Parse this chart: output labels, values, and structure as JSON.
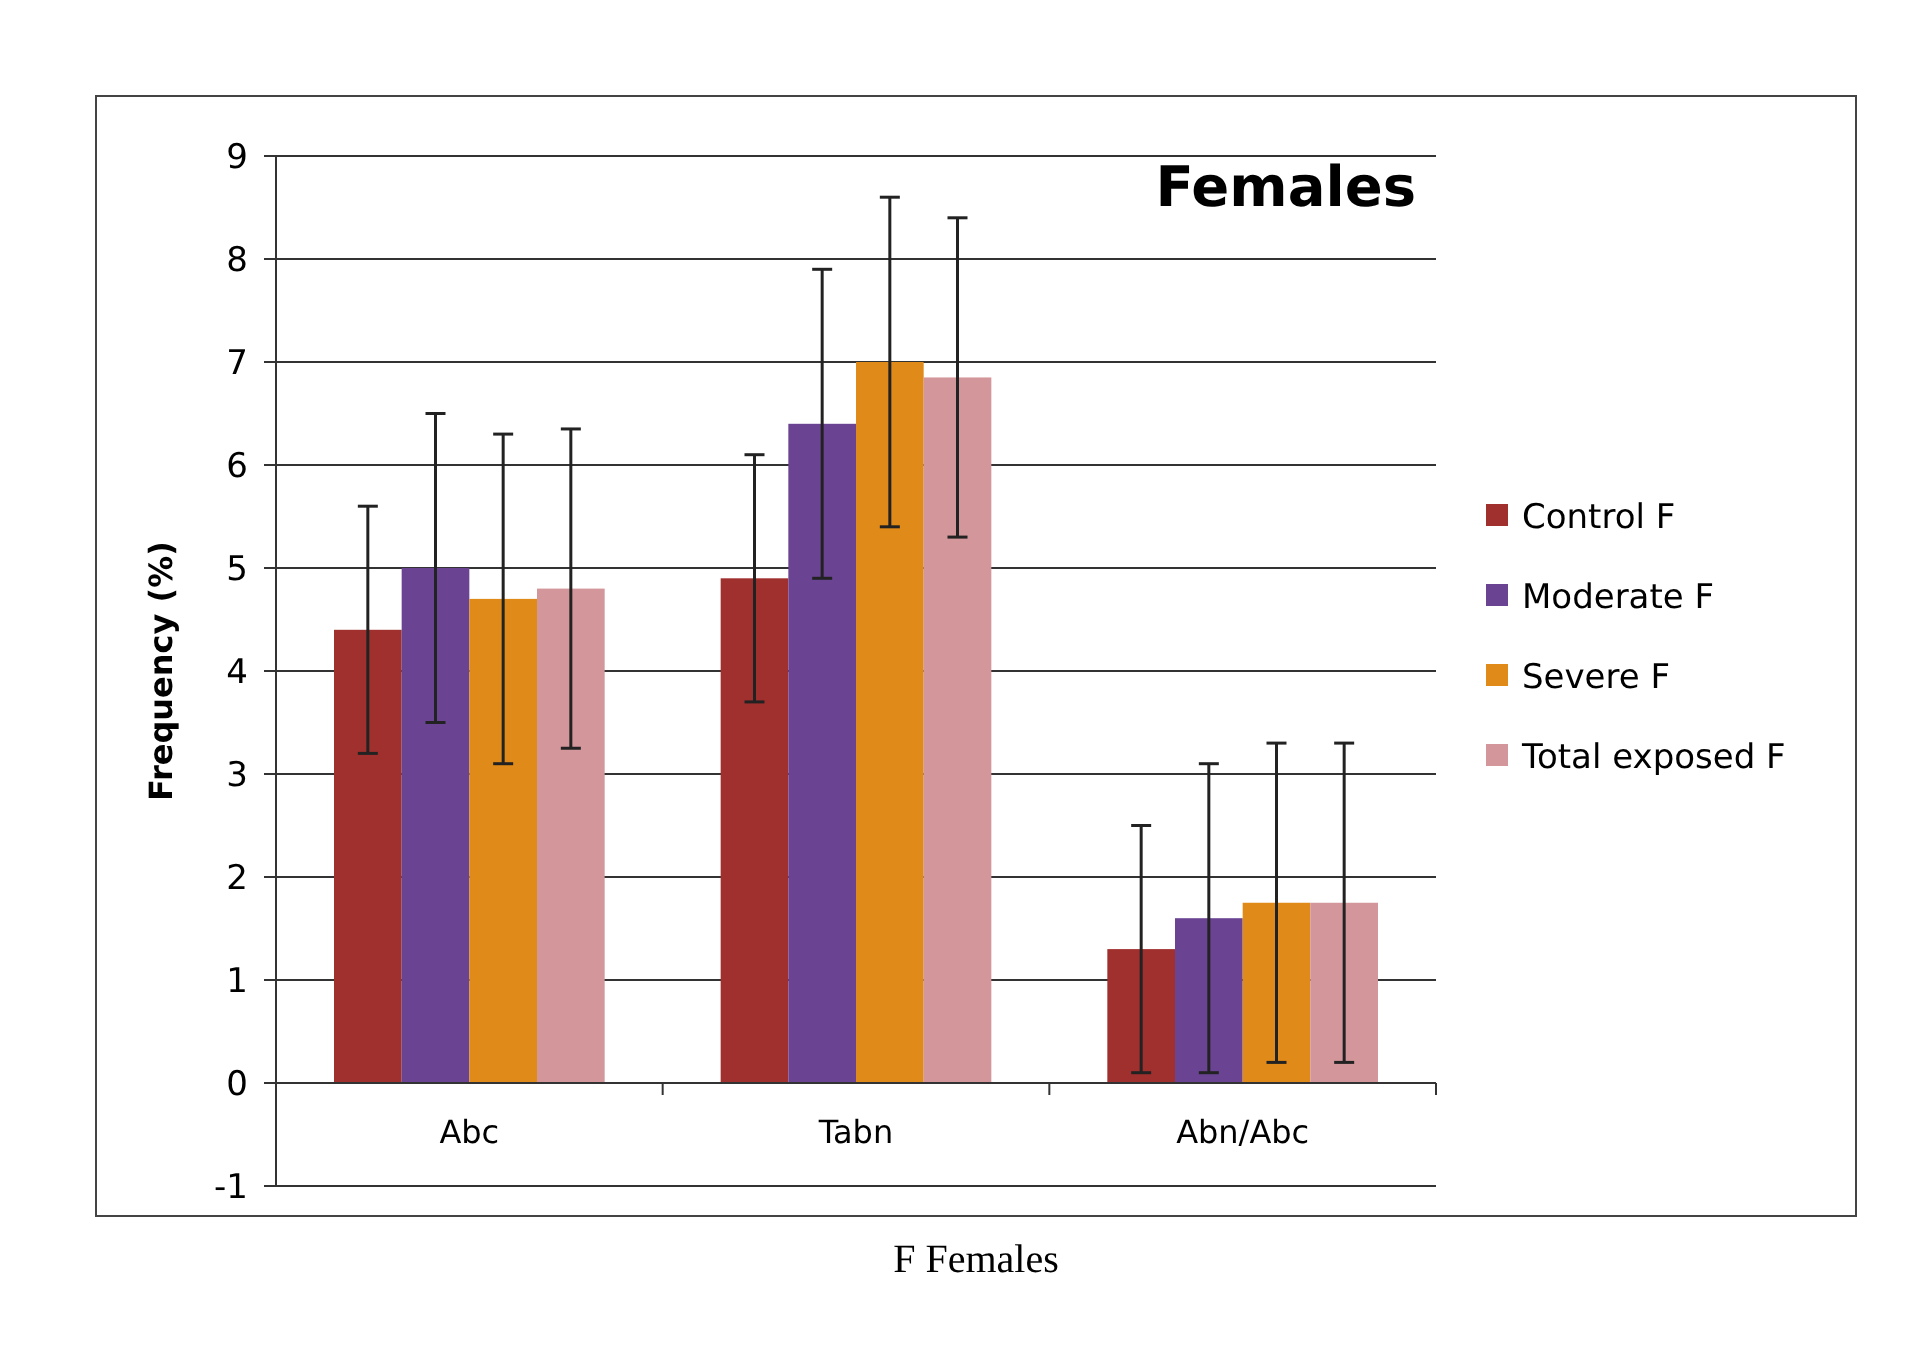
{
  "chart_data": {
    "type": "bar",
    "title": "Females",
    "ylabel": "Frequency (%)",
    "categories": [
      "Abc",
      "Tabn",
      "Abn/Abc"
    ],
    "series": [
      {
        "name": "Control F",
        "color": "#a0302e",
        "values": [
          4.4,
          4.9,
          1.3
        ],
        "errors": [
          1.2,
          1.2,
          1.2
        ]
      },
      {
        "name": "Moderate F",
        "color": "#6a4493",
        "values": [
          5.0,
          6.4,
          1.6
        ],
        "errors": [
          1.5,
          1.5,
          1.5
        ]
      },
      {
        "name": "Severe F",
        "color": "#e08a1a",
        "values": [
          4.7,
          7.0,
          1.75
        ],
        "errors": [
          1.6,
          1.6,
          1.55
        ]
      },
      {
        "name": "Total exposed F",
        "color": "#d3969a",
        "values": [
          4.8,
          6.85,
          1.75
        ],
        "errors": [
          1.55,
          1.55,
          1.55
        ]
      }
    ],
    "ylim": [
      -1,
      9
    ],
    "yticks": [
      -1,
      0,
      1,
      2,
      3,
      4,
      5,
      6,
      7,
      8,
      9
    ],
    "grid": "y",
    "legend": "right",
    "annotations": [
      "F Females"
    ]
  }
}
